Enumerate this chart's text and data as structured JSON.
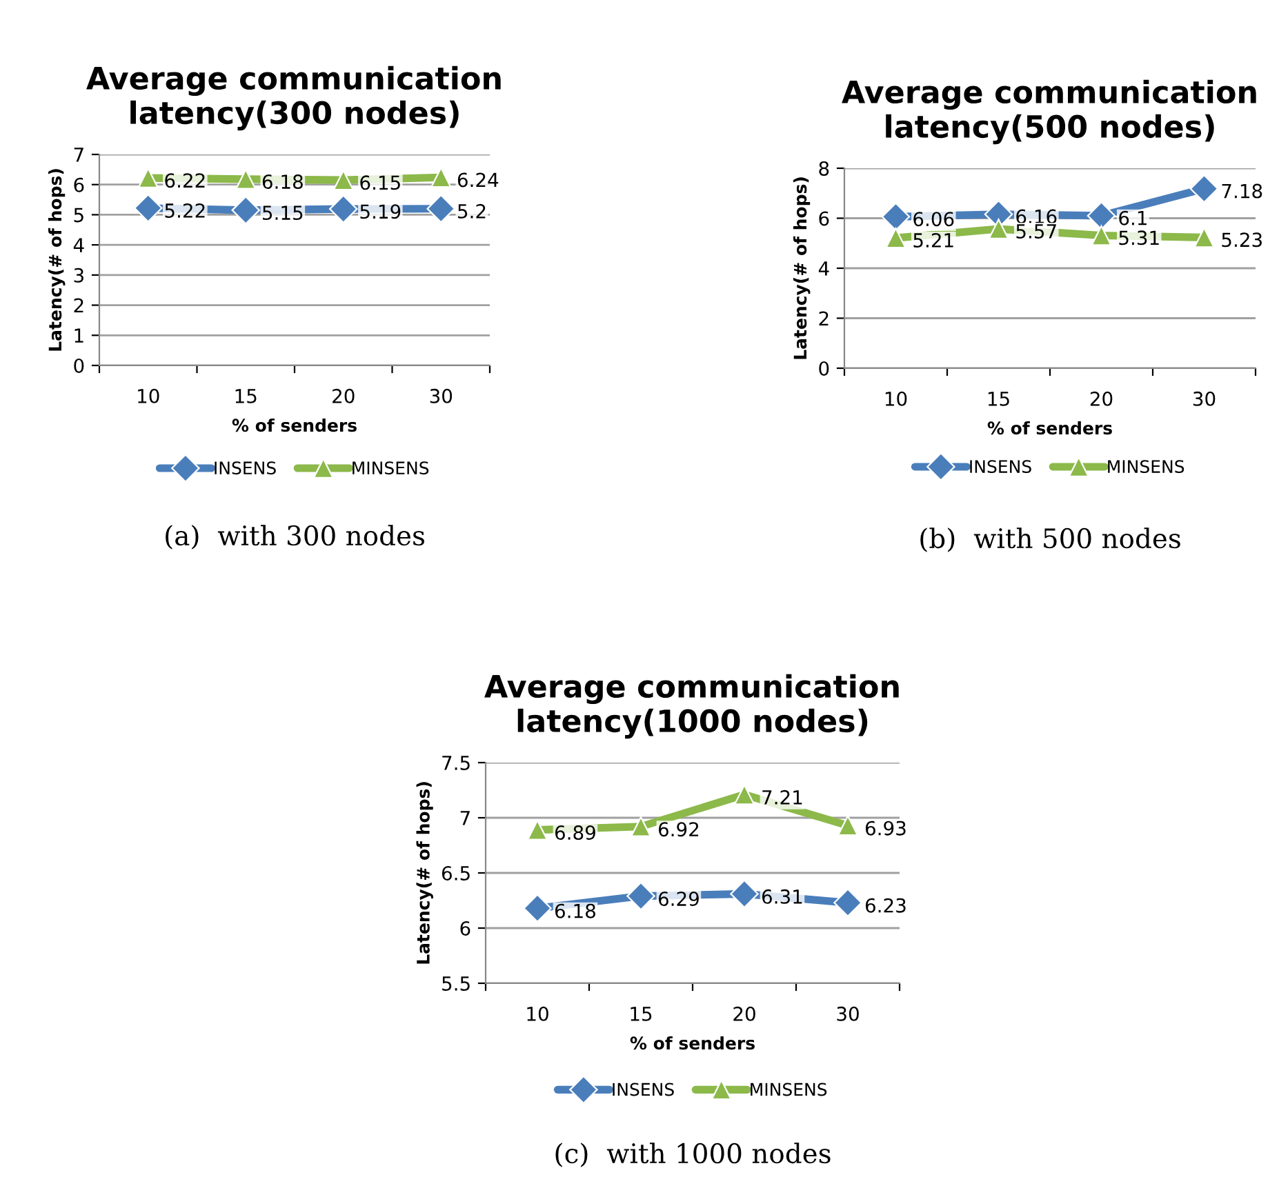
{
  "chart_data": [
    {
      "type": "line",
      "title": "Average communication latency(300 nodes)",
      "xlabel": "% of senders",
      "ylabel": "Latency(# of hops)",
      "categories": [
        "10",
        "15",
        "20",
        "30"
      ],
      "series": [
        {
          "name": "INSENS",
          "color": "#4a7ebb",
          "marker": "diamond",
          "values": [
            5.22,
            5.15,
            5.19,
            5.2
          ]
        },
        {
          "name": "MINSENS",
          "color": "#8cb94a",
          "marker": "triangle",
          "values": [
            6.22,
            6.18,
            6.15,
            6.24
          ]
        }
      ],
      "ylim": [
        0,
        7
      ],
      "yticks": [
        0,
        1,
        2,
        3,
        4,
        5,
        6,
        7
      ],
      "grid": "y",
      "legend": "bottom",
      "data_labels": true,
      "annotations": [
        "(a)  with 300 nodes"
      ]
    },
    {
      "type": "line",
      "title": "Average communication latency(500 nodes)",
      "xlabel": "% of senders",
      "ylabel": "Latency(# of hops)",
      "categories": [
        "10",
        "15",
        "20",
        "30"
      ],
      "series": [
        {
          "name": "INSENS",
          "color": "#4a7ebb",
          "marker": "diamond",
          "values": [
            6.06,
            6.16,
            6.1,
            7.18
          ]
        },
        {
          "name": "MINSENS",
          "color": "#8cb94a",
          "marker": "triangle",
          "values": [
            5.21,
            5.57,
            5.31,
            5.23
          ]
        }
      ],
      "ylim": [
        0,
        8
      ],
      "yticks": [
        0,
        2,
        4,
        6,
        8
      ],
      "grid": "y",
      "legend": "bottom",
      "data_labels": true,
      "annotations": [
        "(b)  with 500 nodes"
      ]
    },
    {
      "type": "line",
      "title": "Average communication latency(1000 nodes)",
      "xlabel": "% of senders",
      "ylabel": "Latency(# of hops)",
      "categories": [
        "10",
        "15",
        "20",
        "30"
      ],
      "series": [
        {
          "name": "INSENS",
          "color": "#4a7ebb",
          "marker": "diamond",
          "values": [
            6.18,
            6.29,
            6.31,
            6.23
          ]
        },
        {
          "name": "MINSENS",
          "color": "#8cb94a",
          "marker": "triangle",
          "values": [
            6.89,
            6.92,
            7.21,
            6.93
          ]
        }
      ],
      "ylim": [
        5.5,
        7.5
      ],
      "yticks": [
        5.5,
        6,
        6.5,
        7,
        7.5
      ],
      "grid": "y",
      "legend": "bottom",
      "data_labels": true,
      "annotations": [
        "(c)  with 1000 nodes"
      ]
    }
  ]
}
